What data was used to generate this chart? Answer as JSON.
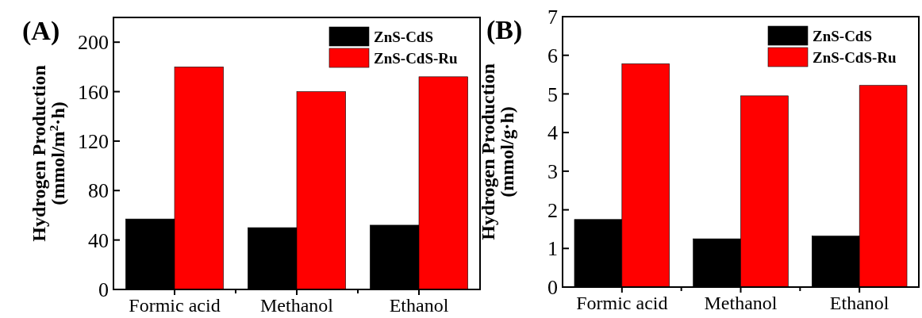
{
  "chart_data": [
    {
      "type": "bar",
      "title": "(A)",
      "categories": [
        "Formic acid",
        "Methanol",
        "Ethanol"
      ],
      "ylabel": "Hydrogen Production\n(mmol/m$^{2}$·h)",
      "ylim": [
        0,
        220
      ],
      "yticks": [
        0,
        40,
        80,
        120,
        160,
        200
      ],
      "legend": "top right",
      "grid": false,
      "series": [
        {
          "name": "ZnS-CdS",
          "color": "#000000",
          "values": [
            57,
            50,
            52
          ]
        },
        {
          "name": "ZnS-CdS-Ru",
          "color": "#ff0000",
          "values": [
            180,
            160,
            172
          ]
        }
      ]
    },
    {
      "type": "bar",
      "title": "(B)",
      "categories": [
        "Formic acid",
        "Methanol",
        "Ethanol"
      ],
      "ylabel": "Hydrogen Production\n(mmol/g·h)",
      "ylim": [
        0,
        7
      ],
      "yticks": [
        0,
        1,
        2,
        3,
        4,
        5,
        6,
        7
      ],
      "legend": "top right",
      "grid": false,
      "series": [
        {
          "name": "ZnS-CdS",
          "color": "#000000",
          "values": [
            1.75,
            1.25,
            1.32
          ]
        },
        {
          "name": "ZnS-CdS-Ru",
          "color": "#ff0000",
          "values": [
            5.78,
            4.95,
            5.22
          ]
        }
      ]
    }
  ]
}
